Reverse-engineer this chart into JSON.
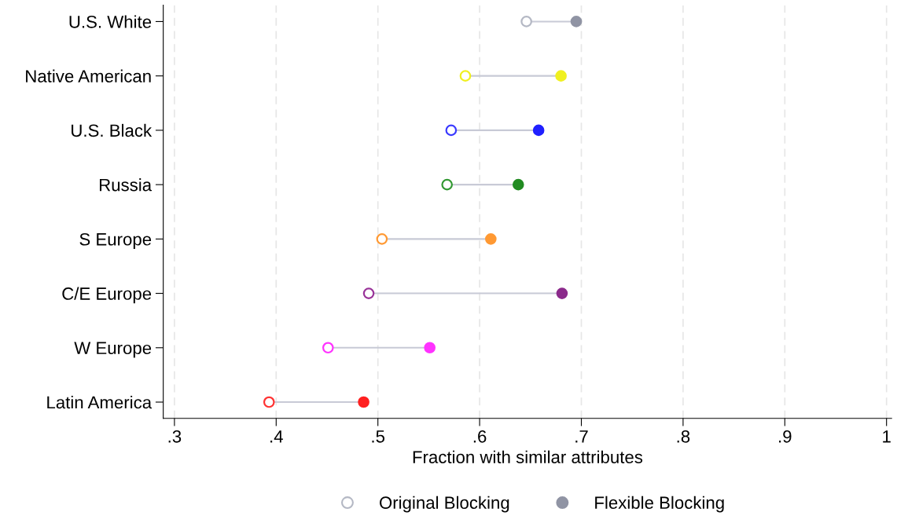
{
  "chart_data": {
    "type": "scatter",
    "orientation": "horizontal",
    "xlabel": "Fraction with similar attributes",
    "categories": [
      "U.S. White",
      "Native American",
      "U.S. Black",
      "Russia",
      "S Europe",
      "C/E Europe",
      "W Europe",
      "Latin America"
    ],
    "series": [
      {
        "name": "Original Blocking",
        "color": "#b4b8c4",
        "marker": "circle",
        "colors": [
          "#b4b8c4",
          "#f0f020",
          "#3a3aff",
          "#339933",
          "#ff9933",
          "#993399",
          "#ff33ff",
          "#ff3333"
        ],
        "values": [
          0.646,
          0.586,
          0.572,
          0.568,
          0.504,
          0.491,
          0.451,
          0.393
        ]
      },
      {
        "name": "Flexible Blocking",
        "color": "#9094a4",
        "marker": "circle",
        "colors": [
          "#9094a4",
          "#f0f020",
          "#2020ff",
          "#228b22",
          "#ff9933",
          "#8b2a8b",
          "#ff33ff",
          "#ff2020"
        ],
        "values": [
          0.695,
          0.68,
          0.658,
          0.638,
          0.611,
          0.681,
          0.551,
          0.486
        ]
      }
    ],
    "xlim": [
      0.289,
      1.005
    ],
    "xticks": [
      {
        "value": 0.3,
        "label": ".3"
      },
      {
        "value": 0.4,
        "label": ".4"
      },
      {
        "value": 0.5,
        "label": ".5"
      },
      {
        "value": 0.6,
        "label": ".6"
      },
      {
        "value": 0.7,
        "label": ".7"
      },
      {
        "value": 0.8,
        "label": ".8"
      },
      {
        "value": 0.9,
        "label": ".9"
      },
      1
    ],
    "grid": "x",
    "legend": "bottom"
  }
}
